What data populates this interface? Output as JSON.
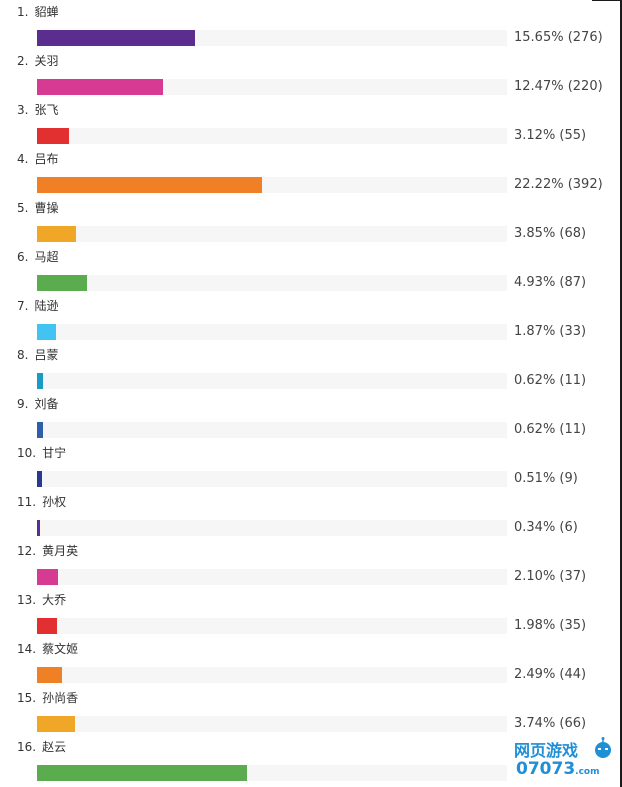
{
  "poll": {
    "items": [
      {
        "num": "1.",
        "name": "貂蝉",
        "value": "15.65% (276)",
        "percent": 15.65,
        "color": "#5b2d8e"
      },
      {
        "num": "2.",
        "name": "关羽",
        "value": "12.47% (220)",
        "percent": 12.47,
        "color": "#d63a93"
      },
      {
        "num": "3.",
        "name": "张飞",
        "value": "3.12% (55)",
        "percent": 3.12,
        "color": "#e23030"
      },
      {
        "num": "4.",
        "name": "吕布",
        "value": "22.22% (392)",
        "percent": 22.22,
        "color": "#f08026"
      },
      {
        "num": "5.",
        "name": "曹操",
        "value": "3.85% (68)",
        "percent": 3.85,
        "color": "#f0a728"
      },
      {
        "num": "6.",
        "name": "马超",
        "value": "4.93% (87)",
        "percent": 4.93,
        "color": "#5aac4f"
      },
      {
        "num": "7.",
        "name": "陆逊",
        "value": "1.87% (33)",
        "percent": 1.87,
        "color": "#42c4f2"
      },
      {
        "num": "8.",
        "name": "吕蒙",
        "value": "0.62% (11)",
        "percent": 0.62,
        "color": "#1a9ac4"
      },
      {
        "num": "9.",
        "name": "刘备",
        "value": "0.62% (11)",
        "percent": 0.62,
        "color": "#2f5fa8"
      },
      {
        "num": "10.",
        "name": "甘宁",
        "value": "0.51% (9)",
        "percent": 0.51,
        "color": "#263a8e"
      },
      {
        "num": "11.",
        "name": "孙权",
        "value": "0.34% (6)",
        "percent": 0.34,
        "color": "#5b2d8e"
      },
      {
        "num": "12.",
        "name": "黄月英",
        "value": "2.10% (37)",
        "percent": 2.1,
        "color": "#d63a93"
      },
      {
        "num": "13.",
        "name": "大乔",
        "value": "1.98% (35)",
        "percent": 1.98,
        "color": "#e23030"
      },
      {
        "num": "14.",
        "name": "蔡文姬",
        "value": "2.49% (44)",
        "percent": 2.49,
        "color": "#f08026"
      },
      {
        "num": "15.",
        "name": "孙尚香",
        "value": "3.74% (66)",
        "percent": 3.74,
        "color": "#f0a728"
      },
      {
        "num": "16.",
        "name": "赵云",
        "value": "",
        "percent": 20.8,
        "color": "#5aac4f"
      }
    ]
  },
  "watermark": {
    "title": "网页游戏",
    "domain": "07073",
    "suffix": ".com"
  }
}
